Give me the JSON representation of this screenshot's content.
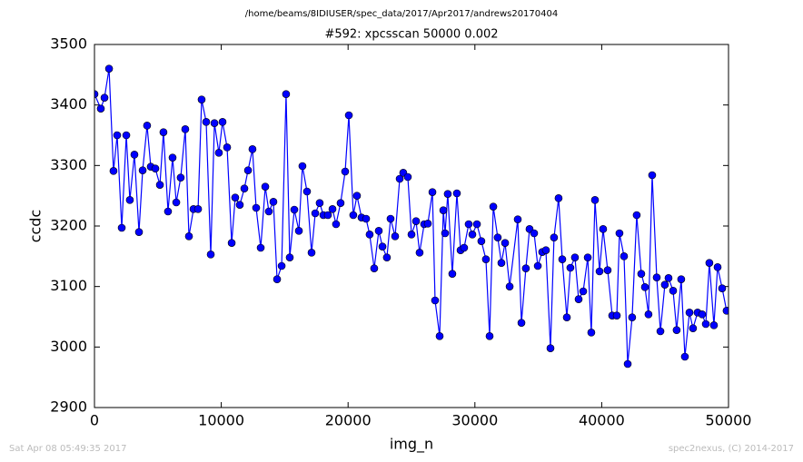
{
  "chart_data": {
    "type": "line",
    "suptitle": "/home/beams/8IDIUSER/spec_data/2017/Apr2017/andrews20170404",
    "title": "#592: xpcsscan 50000 0.002",
    "xlabel": "img_n",
    "ylabel": "ccdc",
    "timestamp": "Sat Apr 08 05:49:35 2017",
    "credit": "spec2nexus, (C) 2014-2017",
    "color": "#0000ff",
    "xlim": [
      0,
      50000
    ],
    "xticks": [
      0,
      10000,
      20000,
      30000,
      40000,
      50000
    ],
    "ylim": [
      2900,
      3500
    ],
    "yticks": [
      2900,
      3000,
      3100,
      3200,
      3300,
      3400,
      3500
    ],
    "x": [
      0,
      500,
      790,
      1150,
      1500,
      1790,
      2150,
      2510,
      2790,
      3150,
      3510,
      3800,
      4150,
      4440,
      4800,
      5160,
      5440,
      5800,
      6160,
      6450,
      6800,
      7160,
      7450,
      7810,
      8170,
      8450,
      8810,
      9170,
      9460,
      9810,
      10100,
      10460,
      10820,
      11100,
      11460,
      11820,
      12110,
      12460,
      12750,
      13110,
      13470,
      13750,
      14110,
      14400,
      14760,
      15110,
      15400,
      15760,
      16120,
      16400,
      16760,
      17120,
      17410,
      17760,
      18050,
      18410,
      18770,
      19050,
      19410,
      19770,
      20060,
      20410,
      20700,
      21060,
      21420,
      21700,
      22060,
      22420,
      22710,
      23060,
      23350,
      23710,
      24070,
      24350,
      24710,
      25000,
      25360,
      25640,
      26000,
      26290,
      26650,
      26860,
      27220,
      27510,
      27650,
      27860,
      28220,
      28580,
      28870,
      29150,
      29510,
      29800,
      30160,
      30510,
      30870,
      31160,
      31450,
      31800,
      32090,
      32380,
      32740,
      33380,
      33670,
      34020,
      34310,
      34670,
      34960,
      35310,
      35600,
      35960,
      36240,
      36600,
      36890,
      37250,
      37530,
      37890,
      38180,
      38540,
      38900,
      39180,
      39470,
      39830,
      40110,
      40470,
      40830,
      41190,
      41400,
      41760,
      42050,
      42400,
      42760,
      43120,
      43410,
      43690,
      43980,
      44340,
      44630,
      44980,
      45270,
      45630,
      45910,
      46270,
      46560,
      46920,
      47200,
      47560,
      47920,
      48210,
      48490,
      48850,
      49140,
      49500,
      49850
    ],
    "values": [
      3418,
      3394,
      3412,
      3460,
      3291,
      3350,
      3197,
      3350,
      3243,
      3318,
      3190,
      3292,
      3366,
      3298,
      3295,
      3268,
      3355,
      3224,
      3313,
      3239,
      3280,
      3360,
      3183,
      3228,
      3228,
      3409,
      3372,
      3153,
      3370,
      3321,
      3372,
      3330,
      3172,
      3247,
      3235,
      3262,
      3292,
      3327,
      3230,
      3164,
      3265,
      3224,
      3240,
      3112,
      3134,
      3418,
      3148,
      3227,
      3192,
      3299,
      3257,
      3156,
      3221,
      3238,
      3218,
      3218,
      3228,
      3203,
      3238,
      3290,
      3383,
      3218,
      3250,
      3214,
      3212,
      3186,
      3130,
      3192,
      3166,
      3148,
      3212,
      3183,
      3278,
      3288,
      3281,
      3186,
      3208,
      3156,
      3203,
      3204,
      3256,
      3077,
      3018,
      3226,
      3188,
      3253,
      3121,
      3254,
      3160,
      3164,
      3203,
      3186,
      3203,
      3175,
      3145,
      3018,
      3232,
      3181,
      3139,
      3172,
      3100,
      3211,
      3040,
      3130,
      3195,
      3188,
      3134,
      3157,
      3160,
      2998,
      3181,
      3246,
      3145,
      3049,
      3131,
      3148,
      3079,
      3092,
      3148,
      3024,
      3243,
      3125,
      3195,
      3127,
      3052,
      3052,
      3188,
      3150,
      2972,
      3049,
      3218,
      3121,
      3099,
      3054,
      3284,
      3115,
      3026,
      3103,
      3114,
      3093,
      3028,
      3112,
      2984,
      3057,
      3031,
      3057,
      3054,
      3038,
      3139,
      3036,
      3132,
      3097,
      3060
    ]
  }
}
